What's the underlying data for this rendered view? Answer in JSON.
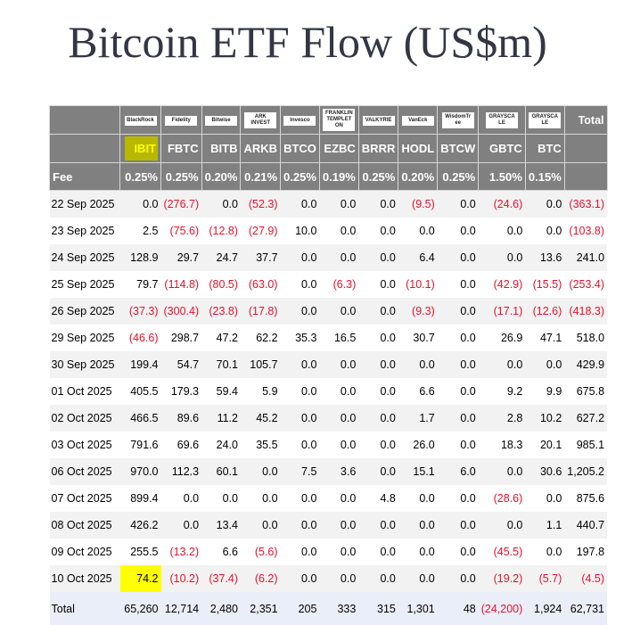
{
  "title": "Bitcoin ETF Flow (US$m)",
  "issuers": [
    "BlackRock",
    "Fidelity",
    "Bitwise",
    "ARK INVEST",
    "Invesco",
    "FRANKLIN TEMPLETON",
    "VALKYRIE",
    "VanEck",
    "WisdomTree",
    "GRAYSCALE",
    "GRAYSCALE"
  ],
  "total_label": "Total",
  "tickers": [
    "IBIT",
    "FBTC",
    "BITB",
    "ARKB",
    "BTCO",
    "EZBC",
    "BRRR",
    "HODL",
    "BTCW",
    "GBTC",
    "BTC"
  ],
  "fee_label": "Fee",
  "fees": [
    "0.25%",
    "0.25%",
    "0.20%",
    "0.21%",
    "0.25%",
    "0.19%",
    "0.25%",
    "0.20%",
    "0.25%",
    "1.50%",
    "0.15%"
  ],
  "rows": [
    [
      "22 Sep 2025",
      "0.0",
      "(276.7)",
      "0.0",
      "(52.3)",
      "0.0",
      "0.0",
      "0.0",
      "(9.5)",
      "0.0",
      "(24.6)",
      "0.0",
      "(363.1)"
    ],
    [
      "23 Sep 2025",
      "2.5",
      "(75.6)",
      "(12.8)",
      "(27.9)",
      "10.0",
      "0.0",
      "0.0",
      "0.0",
      "0.0",
      "0.0",
      "0.0",
      "(103.8)"
    ],
    [
      "24 Sep 2025",
      "128.9",
      "29.7",
      "24.7",
      "37.7",
      "0.0",
      "0.0",
      "0.0",
      "6.4",
      "0.0",
      "0.0",
      "13.6",
      "241.0"
    ],
    [
      "25 Sep 2025",
      "79.7",
      "(114.8)",
      "(80.5)",
      "(63.0)",
      "0.0",
      "(6.3)",
      "0.0",
      "(10.1)",
      "0.0",
      "(42.9)",
      "(15.5)",
      "(253.4)"
    ],
    [
      "26 Sep 2025",
      "(37.3)",
      "(300.4)",
      "(23.8)",
      "(17.8)",
      "0.0",
      "0.0",
      "0.0",
      "(9.3)",
      "0.0",
      "(17.1)",
      "(12.6)",
      "(418.3)"
    ],
    [
      "29 Sep 2025",
      "(46.6)",
      "298.7",
      "47.2",
      "62.2",
      "35.3",
      "16.5",
      "0.0",
      "30.7",
      "0.0",
      "26.9",
      "47.1",
      "518.0"
    ],
    [
      "30 Sep 2025",
      "199.4",
      "54.7",
      "70.1",
      "105.7",
      "0.0",
      "0.0",
      "0.0",
      "0.0",
      "0.0",
      "0.0",
      "0.0",
      "429.9"
    ],
    [
      "01 Oct 2025",
      "405.5",
      "179.3",
      "59.4",
      "5.9",
      "0.0",
      "0.0",
      "0.0",
      "6.6",
      "0.0",
      "9.2",
      "9.9",
      "675.8"
    ],
    [
      "02 Oct 2025",
      "466.5",
      "89.6",
      "11.2",
      "45.2",
      "0.0",
      "0.0",
      "0.0",
      "1.7",
      "0.0",
      "2.8",
      "10.2",
      "627.2"
    ],
    [
      "03 Oct 2025",
      "791.6",
      "69.6",
      "24.0",
      "35.5",
      "0.0",
      "0.0",
      "0.0",
      "26.0",
      "0.0",
      "18.3",
      "20.1",
      "985.1"
    ],
    [
      "06 Oct 2025",
      "970.0",
      "112.3",
      "60.1",
      "0.0",
      "7.5",
      "3.6",
      "0.0",
      "15.1",
      "6.0",
      "0.0",
      "30.6",
      "1,205.2"
    ],
    [
      "07 Oct 2025",
      "899.4",
      "0.0",
      "0.0",
      "0.0",
      "0.0",
      "0.0",
      "4.8",
      "0.0",
      "0.0",
      "(28.6)",
      "0.0",
      "875.6"
    ],
    [
      "08 Oct 2025",
      "426.2",
      "0.0",
      "13.4",
      "0.0",
      "0.0",
      "0.0",
      "0.0",
      "0.0",
      "0.0",
      "0.0",
      "1.1",
      "440.7"
    ],
    [
      "09 Oct 2025",
      "255.5",
      "(13.2)",
      "6.6",
      "(5.6)",
      "0.0",
      "0.0",
      "0.0",
      "0.0",
      "0.0",
      "(45.5)",
      "0.0",
      "197.8"
    ],
    [
      "10 Oct 2025",
      "74.2",
      "(10.2)",
      "(37.4)",
      "(6.2)",
      "0.0",
      "0.0",
      "0.0",
      "0.0",
      "0.0",
      "(19.2)",
      "(5.7)",
      "(4.5)"
    ]
  ],
  "totals": [
    "Total",
    "65,260",
    "12,714",
    "2,480",
    "2,351",
    "205",
    "333",
    "315",
    "1,301",
    "48",
    "(24,200)",
    "1,924",
    "62,731"
  ],
  "highlight_color": "#ffff00",
  "negative_color": "#e8102a"
}
